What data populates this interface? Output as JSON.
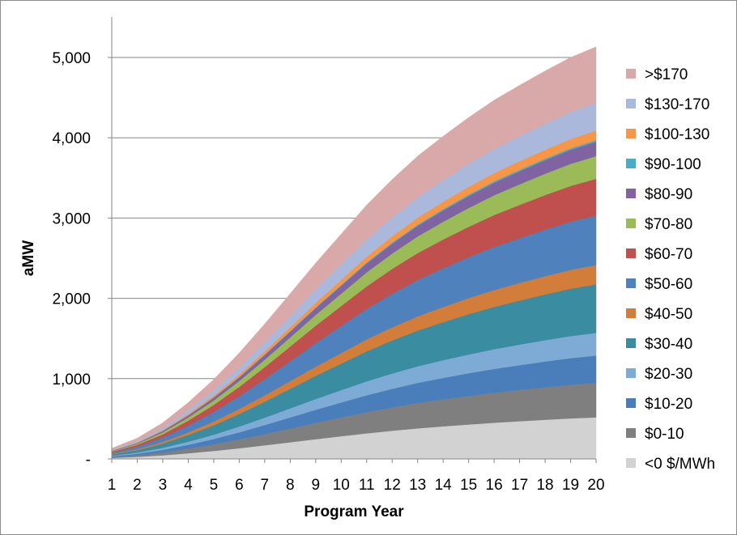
{
  "chart_data": {
    "type": "area",
    "stacked": true,
    "title": "",
    "xlabel": "Program Year",
    "ylabel": "aMW",
    "x": [
      1,
      2,
      3,
      4,
      5,
      6,
      7,
      8,
      9,
      10,
      11,
      12,
      13,
      14,
      15,
      16,
      17,
      18,
      19,
      20
    ],
    "ylim": [
      0,
      5000
    ],
    "yticks": [
      0,
      1000,
      2000,
      3000,
      4000,
      5000
    ],
    "ytick_labels": [
      "-",
      "1,000",
      "2,000",
      "3,000",
      "4,000",
      "5,000"
    ],
    "grid": true,
    "legend_position": "right",
    "series": [
      {
        "name": "<0 $/MWh",
        "color": "#d2d2d2",
        "values": [
          13,
          26,
          45,
          71,
          100,
          133,
          170,
          208,
          246,
          283,
          319,
          351,
          381,
          406,
          429,
          451,
          470,
          488,
          505,
          518
        ]
      },
      {
        "name": "$0-10",
        "color": "#7f7f7f",
        "values": [
          11,
          22,
          38,
          59,
          83,
          111,
          141,
          173,
          205,
          235,
          265,
          292,
          317,
          338,
          357,
          375,
          391,
          406,
          420,
          431
        ]
      },
      {
        "name": "$10-20",
        "color": "#4a7ebb",
        "values": [
          9,
          17,
          30,
          46,
          65,
          87,
          111,
          136,
          161,
          185,
          209,
          230,
          249,
          265,
          281,
          295,
          307,
          319,
          330,
          339
        ]
      },
      {
        "name": "$20-30",
        "color": "#7eaad6",
        "values": [
          7,
          14,
          25,
          39,
          54,
          73,
          92,
          113,
          134,
          154,
          174,
          191,
          207,
          221,
          234,
          246,
          256,
          266,
          275,
          282
        ]
      },
      {
        "name": "$30-40",
        "color": "#3a8ca0",
        "values": [
          15,
          31,
          53,
          83,
          117,
          156,
          198,
          243,
          288,
          330,
          373,
          411,
          445,
          474,
          502,
          527,
          549,
          570,
          590,
          605
        ]
      },
      {
        "name": "$40-50",
        "color": "#d27d39",
        "values": [
          6,
          12,
          21,
          33,
          47,
          62,
          79,
          97,
          115,
          132,
          149,
          164,
          177,
          189,
          200,
          210,
          219,
          227,
          235,
          241
        ]
      },
      {
        "name": "$50-60",
        "color": "#4f81bd",
        "values": [
          16,
          31,
          54,
          84,
          119,
          158,
          202,
          247,
          293,
          336,
          379,
          418,
          452,
          482,
          510,
          536,
          558,
          580,
          600,
          616
        ]
      },
      {
        "name": "$60-70",
        "color": "#c0504d",
        "values": [
          12,
          23,
          40,
          62,
          88,
          117,
          150,
          183,
          217,
          249,
          281,
          310,
          336,
          358,
          378,
          398,
          414,
          430,
          445,
          457
        ]
      },
      {
        "name": "$70-80",
        "color": "#9bbb59",
        "values": [
          7,
          14,
          25,
          39,
          54,
          73,
          92,
          113,
          134,
          154,
          174,
          191,
          207,
          221,
          234,
          246,
          256,
          266,
          275,
          282
        ]
      },
      {
        "name": "$80-90",
        "color": "#8064a2",
        "values": [
          5,
          9,
          16,
          25,
          35,
          46,
          59,
          72,
          85,
          98,
          111,
          122,
          132,
          141,
          149,
          156,
          163,
          169,
          175,
          180
        ]
      },
      {
        "name": "$90-100",
        "color": "#4bacc6",
        "values": [
          1,
          1,
          2,
          3,
          4,
          5,
          7,
          8,
          10,
          11,
          13,
          14,
          15,
          16,
          17,
          18,
          19,
          19,
          20,
          21
        ]
      },
      {
        "name": "$100-130",
        "color": "#f79646",
        "values": [
          3,
          6,
          10,
          16,
          23,
          30,
          39,
          47,
          56,
          64,
          73,
          80,
          87,
          92,
          98,
          103,
          107,
          111,
          115,
          118
        ]
      },
      {
        "name": "$130-170",
        "color": "#aab9db",
        "values": [
          9,
          17,
          30,
          47,
          66,
          88,
          113,
          138,
          163,
          188,
          212,
          233,
          253,
          269,
          285,
          299,
          312,
          324,
          335,
          344
        ]
      },
      {
        "name": ">$170",
        "color": "#d9a9aa",
        "values": [
          18,
          35,
          61,
          95,
          135,
          180,
          228,
          280,
          332,
          381,
          430,
          473,
          513,
          547,
          578,
          608,
          632,
          657,
          680,
          698
        ]
      }
    ]
  }
}
